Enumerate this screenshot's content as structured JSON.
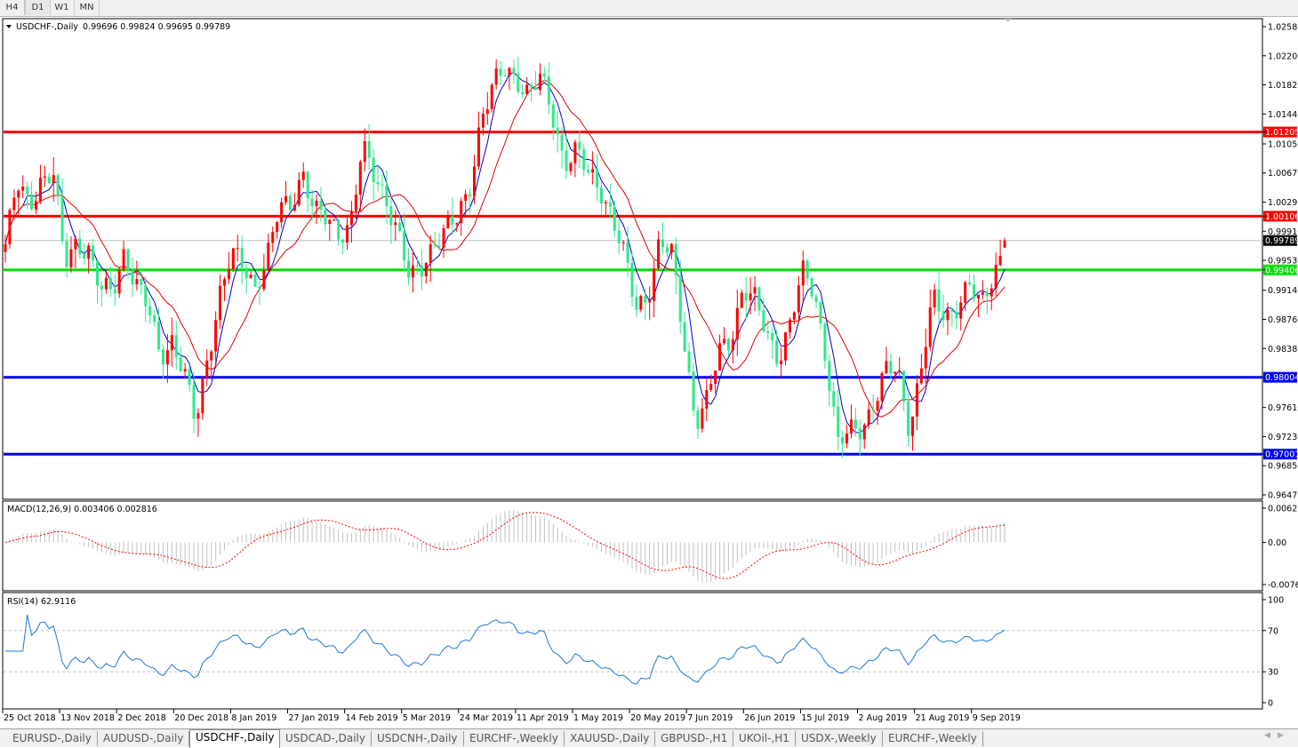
{
  "timeframes": [
    {
      "label": "H4",
      "active": false
    },
    {
      "label": "D1",
      "active": true
    },
    {
      "label": "W1",
      "active": false
    },
    {
      "label": "MN",
      "active": false
    }
  ],
  "header": {
    "symbol": "USDCHF-,Daily",
    "ohlc": "0.99696 0.99824 0.99695 0.99789"
  },
  "colors": {
    "up": "#ff0000",
    "down": "#2fe88c",
    "ma_fast": "#0000cc",
    "ma_slow": "#e00000",
    "macd_hist": "#c0c0c0",
    "macd_signal": "#ff0000",
    "rsi": "#1e78dc",
    "grid_level": "#c0c0c0"
  },
  "price_axis": {
    "ticks": [
      "1.02580",
      "1.02200",
      "1.01820",
      "1.01440",
      "1.01050",
      "1.00670",
      "1.00290",
      "0.99910",
      "0.99530",
      "0.99140",
      "0.98760",
      "0.98380",
      "0.97610",
      "0.97230",
      "0.96850",
      "0.96470"
    ],
    "range": [
      0.9647,
      1.0258
    ]
  },
  "levels": [
    {
      "value": "1.01205",
      "color": "#ff0000"
    },
    {
      "value": "1.00106",
      "color": "#ff0000"
    },
    {
      "value": "0.99406",
      "color": "#00e000"
    },
    {
      "value": "0.98004",
      "color": "#0000ff"
    },
    {
      "value": "0.97001",
      "color": "#0000ff"
    }
  ],
  "bid": {
    "value": "0.99789"
  },
  "macd": {
    "label": "MACD(12,26,9) 0.003406 0.002816",
    "ticks": [
      "0.006286",
      "0.00",
      "-0.00762"
    ]
  },
  "rsi": {
    "label": "RSI(14) 62.9116",
    "ticks": [
      "100",
      "70",
      "30",
      "0"
    ]
  },
  "time_axis": [
    "25 Oct 2018",
    "13 Nov 2018",
    "2 Dec 2018",
    "20 Dec 2018",
    "8 Jan 2019",
    "27 Jan 2019",
    "14 Feb 2019",
    "5 Mar 2019",
    "24 Mar 2019",
    "11 Apr 2019",
    "1 May 2019",
    "20 May 2019",
    "7 Jun 2019",
    "26 Jun 2019",
    "15 Jul 2019",
    "2 Aug 2019",
    "21 Aug 2019",
    "9 Sep 2019"
  ],
  "chart_data": {
    "type": "candlestick",
    "symbol": "USDCHF-",
    "timeframe": "Daily",
    "close_samples": [
      0.9974,
      1.0049,
      1.0026,
      1.0061,
      1.0067,
      0.9945,
      0.998,
      0.9968,
      0.991,
      0.991,
      0.9968,
      0.9922,
      0.9887,
      0.9829,
      0.9852,
      0.9806,
      0.9736,
      0.9829,
      0.991,
      0.9957,
      0.9945,
      0.9922,
      0.9957,
      1.0015,
      1.0026,
      1.0073,
      1.0015,
      1.0003,
      0.9991,
      1.0003,
      1.0096,
      1.0061,
      1.0038,
      0.9991,
      0.9922,
      0.9945,
      0.998,
      0.9991,
      1.0003,
      1.0049,
      1.0142,
      1.0177,
      1.02,
      1.0194,
      1.0171,
      1.0188,
      1.0142,
      1.0084,
      1.0096,
      1.0061,
      1.0049,
      1.0015,
      0.9957,
      0.9887,
      0.991,
      0.998,
      0.9957,
      0.9852,
      0.9748,
      0.9771,
      0.9829,
      0.9852,
      0.9922,
      0.9899,
      0.9852,
      0.9829,
      0.9876,
      0.9933,
      0.991,
      0.9829,
      0.9713,
      0.9725,
      0.9736,
      0.9771,
      0.9806,
      0.9806,
      0.9736,
      0.9818,
      0.9899,
      0.9876,
      0.9899,
      0.9922,
      0.9887,
      0.9933,
      0.9979
    ],
    "last": {
      "open": 0.99696,
      "high": 0.99824,
      "low": 0.99695,
      "close": 0.99789
    }
  },
  "tabs": [
    {
      "label": "EURUSD-,Daily",
      "active": false
    },
    {
      "label": "AUDUSD-,Daily",
      "active": false
    },
    {
      "label": "USDCHF-,Daily",
      "active": true
    },
    {
      "label": "USDCAD-,Daily",
      "active": false
    },
    {
      "label": "USDCNH-,Daily",
      "active": false
    },
    {
      "label": "EURCHF-,Weekly",
      "active": false
    },
    {
      "label": "XAUUSD-,Daily",
      "active": false
    },
    {
      "label": "GBPUSD-,H1",
      "active": false
    },
    {
      "label": "UKOil-,H1",
      "active": false
    },
    {
      "label": "USDX-,Weekly",
      "active": false
    },
    {
      "label": "EURCHF-,Weekly",
      "active": false
    }
  ]
}
